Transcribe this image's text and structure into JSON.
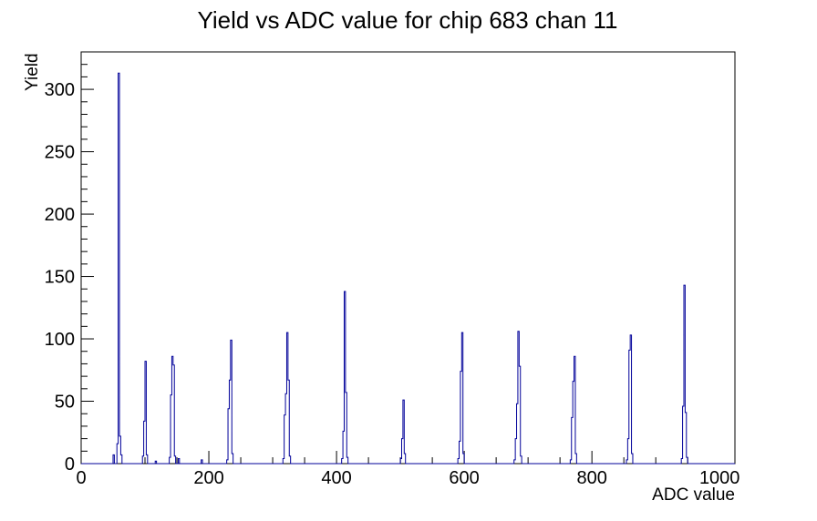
{
  "page": {
    "background_color": "#ffffff",
    "foreground_color": "#000000"
  },
  "chart_data": {
    "type": "bar",
    "subtype": "root-histogram-outline",
    "title": "Yield vs ADC value for chip 683 chan 11",
    "xlabel": "ADC value",
    "ylabel": "Yield",
    "xlim": [
      0,
      1024
    ],
    "ylim": [
      0,
      330
    ],
    "grid": false,
    "legend_position": "none",
    "line_color": "#000099",
    "frame_color": "#000000",
    "x_major_tick_step": 200,
    "x_minor_tick_step": 50,
    "x_tick_labels": [
      "0",
      "200",
      "400",
      "600",
      "800",
      "1000"
    ],
    "y_major_tick_step": 50,
    "y_minor_tick_step": 10,
    "y_tick_labels": [
      "0",
      "50",
      "100",
      "150",
      "200",
      "250",
      "300"
    ],
    "bin_width": 2,
    "bars": [
      [
        50,
        7
      ],
      [
        56,
        16
      ],
      [
        58,
        313
      ],
      [
        60,
        22
      ],
      [
        62,
        7
      ],
      [
        96,
        6
      ],
      [
        98,
        34
      ],
      [
        100,
        82
      ],
      [
        102,
        7
      ],
      [
        116,
        2
      ],
      [
        138,
        5
      ],
      [
        140,
        55
      ],
      [
        142,
        86
      ],
      [
        144,
        79
      ],
      [
        146,
        6
      ],
      [
        152,
        4
      ],
      [
        188,
        3
      ],
      [
        228,
        3
      ],
      [
        230,
        44
      ],
      [
        232,
        67
      ],
      [
        234,
        99
      ],
      [
        236,
        8
      ],
      [
        316,
        4
      ],
      [
        318,
        39
      ],
      [
        320,
        56
      ],
      [
        322,
        105
      ],
      [
        324,
        67
      ],
      [
        326,
        6
      ],
      [
        408,
        4
      ],
      [
        410,
        26
      ],
      [
        412,
        138
      ],
      [
        414,
        57
      ],
      [
        416,
        5
      ],
      [
        500,
        4
      ],
      [
        502,
        20
      ],
      [
        504,
        51
      ],
      [
        506,
        8
      ],
      [
        590,
        4
      ],
      [
        592,
        18
      ],
      [
        594,
        74
      ],
      [
        596,
        105
      ],
      [
        598,
        8
      ],
      [
        678,
        3
      ],
      [
        680,
        20
      ],
      [
        682,
        48
      ],
      [
        684,
        106
      ],
      [
        686,
        78
      ],
      [
        688,
        6
      ],
      [
        766,
        3
      ],
      [
        768,
        37
      ],
      [
        770,
        66
      ],
      [
        772,
        86
      ],
      [
        774,
        8
      ],
      [
        854,
        3
      ],
      [
        856,
        20
      ],
      [
        858,
        91
      ],
      [
        860,
        103
      ],
      [
        862,
        8
      ],
      [
        940,
        4
      ],
      [
        942,
        46
      ],
      [
        944,
        143
      ],
      [
        946,
        41
      ],
      [
        948,
        5
      ]
    ],
    "main_peaks": [
      {
        "adc": 59,
        "yield": 313
      },
      {
        "adc": 101,
        "yield": 82
      },
      {
        "adc": 143,
        "yield": 86
      },
      {
        "adc": 235,
        "yield": 99
      },
      {
        "adc": 323,
        "yield": 105
      },
      {
        "adc": 413,
        "yield": 138
      },
      {
        "adc": 505,
        "yield": 51
      },
      {
        "adc": 597,
        "yield": 105
      },
      {
        "adc": 685,
        "yield": 106
      },
      {
        "adc": 773,
        "yield": 86
      },
      {
        "adc": 861,
        "yield": 103
      },
      {
        "adc": 945,
        "yield": 143
      }
    ]
  }
}
